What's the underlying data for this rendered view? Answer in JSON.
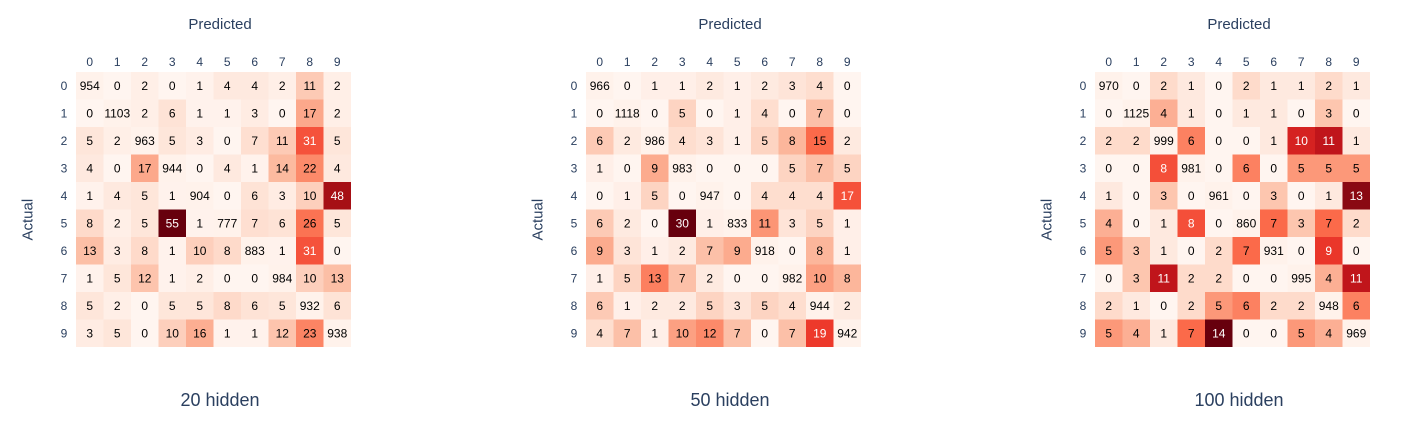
{
  "chart_data": [
    {
      "type": "heatmap",
      "subtitle": "20 hidden",
      "xlabel": "Predicted",
      "ylabel": "Actual",
      "x_ticks": [
        "0",
        "1",
        "2",
        "3",
        "4",
        "5",
        "6",
        "7",
        "8",
        "9"
      ],
      "y_ticks": [
        "0",
        "1",
        "2",
        "3",
        "4",
        "5",
        "6",
        "7",
        "8",
        "9"
      ],
      "colorscale": "Reds",
      "values": [
        [
          954,
          0,
          2,
          0,
          1,
          4,
          4,
          2,
          11,
          2
        ],
        [
          0,
          1103,
          2,
          6,
          1,
          1,
          3,
          0,
          17,
          2
        ],
        [
          5,
          2,
          963,
          5,
          3,
          0,
          7,
          11,
          31,
          5
        ],
        [
          4,
          0,
          17,
          944,
          0,
          4,
          1,
          14,
          22,
          4
        ],
        [
          1,
          4,
          5,
          1,
          904,
          0,
          6,
          3,
          10,
          48
        ],
        [
          8,
          2,
          5,
          55,
          1,
          777,
          7,
          6,
          26,
          5
        ],
        [
          13,
          3,
          8,
          1,
          10,
          8,
          883,
          1,
          31,
          0
        ],
        [
          1,
          5,
          12,
          1,
          2,
          0,
          0,
          984,
          10,
          13
        ],
        [
          5,
          2,
          0,
          5,
          5,
          8,
          6,
          5,
          932,
          6
        ],
        [
          3,
          5,
          0,
          10,
          16,
          1,
          1,
          12,
          23,
          938
        ]
      ]
    },
    {
      "type": "heatmap",
      "subtitle": "50 hidden",
      "xlabel": "Predicted",
      "ylabel": "Actual",
      "x_ticks": [
        "0",
        "1",
        "2",
        "3",
        "4",
        "5",
        "6",
        "7",
        "8",
        "9"
      ],
      "y_ticks": [
        "0",
        "1",
        "2",
        "3",
        "4",
        "5",
        "6",
        "7",
        "8",
        "9"
      ],
      "colorscale": "Reds",
      "values": [
        [
          966,
          0,
          1,
          1,
          2,
          1,
          2,
          3,
          4,
          0
        ],
        [
          0,
          1118,
          0,
          5,
          0,
          1,
          4,
          0,
          7,
          0
        ],
        [
          6,
          2,
          986,
          4,
          3,
          1,
          5,
          8,
          15,
          2
        ],
        [
          1,
          0,
          9,
          983,
          0,
          0,
          0,
          5,
          7,
          5
        ],
        [
          0,
          1,
          5,
          0,
          947,
          0,
          4,
          4,
          4,
          17
        ],
        [
          6,
          2,
          0,
          30,
          1,
          833,
          11,
          3,
          5,
          1
        ],
        [
          9,
          3,
          1,
          2,
          7,
          9,
          918,
          0,
          8,
          1
        ],
        [
          1,
          5,
          13,
          7,
          2,
          0,
          0,
          982,
          10,
          8
        ],
        [
          6,
          1,
          2,
          2,
          5,
          3,
          5,
          4,
          944,
          2
        ],
        [
          4,
          7,
          1,
          10,
          12,
          7,
          0,
          7,
          19,
          942
        ]
      ]
    },
    {
      "type": "heatmap",
      "subtitle": "100 hidden",
      "xlabel": "Predicted",
      "ylabel": "Actual",
      "x_ticks": [
        "0",
        "1",
        "2",
        "3",
        "4",
        "5",
        "6",
        "7",
        "8",
        "9"
      ],
      "y_ticks": [
        "0",
        "1",
        "2",
        "3",
        "4",
        "5",
        "6",
        "7",
        "8",
        "9"
      ],
      "colorscale": "Reds",
      "values": [
        [
          970,
          0,
          2,
          1,
          0,
          2,
          1,
          1,
          2,
          1
        ],
        [
          0,
          1125,
          4,
          1,
          0,
          1,
          1,
          0,
          3,
          0
        ],
        [
          2,
          2,
          999,
          6,
          0,
          0,
          1,
          10,
          11,
          1
        ],
        [
          0,
          0,
          8,
          981,
          0,
          6,
          0,
          5,
          5,
          5
        ],
        [
          1,
          0,
          3,
          0,
          961,
          0,
          3,
          0,
          1,
          13
        ],
        [
          4,
          0,
          1,
          8,
          0,
          860,
          7,
          3,
          7,
          2
        ],
        [
          5,
          3,
          1,
          0,
          2,
          7,
          931,
          0,
          9,
          0
        ],
        [
          0,
          3,
          11,
          2,
          2,
          0,
          0,
          995,
          4,
          11
        ],
        [
          2,
          1,
          0,
          2,
          5,
          6,
          2,
          2,
          948,
          6
        ],
        [
          5,
          4,
          1,
          7,
          14,
          0,
          0,
          5,
          4,
          969
        ]
      ]
    }
  ]
}
